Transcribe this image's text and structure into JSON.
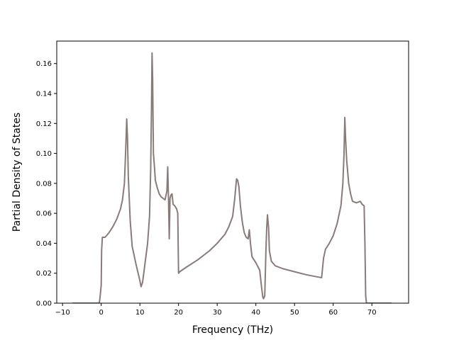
{
  "chart_data": {
    "type": "line",
    "xlabel": "Frequency (THz)",
    "ylabel": "Partial Density of States",
    "xlim": [
      -11.5,
      79.5
    ],
    "ylim": [
      0,
      0.175
    ],
    "x_ticks": [
      -10,
      0,
      10,
      20,
      30,
      40,
      50,
      60,
      70
    ],
    "y_ticks": [
      0.0,
      0.02,
      0.04,
      0.06,
      0.08,
      0.1,
      0.12,
      0.14,
      0.16
    ],
    "y_tick_labels": [
      "0.00",
      "0.02",
      "0.04",
      "0.06",
      "0.08",
      "0.10",
      "0.12",
      "0.14",
      "0.16"
    ],
    "grid": false,
    "series": [
      {
        "color": "#8a7b7b",
        "x": [
          -7.3,
          -0.5,
          -0.3,
          0,
          0.1,
          0.3,
          1,
          2,
          3,
          4,
          5,
          5.5,
          6,
          6.3,
          6.6,
          6.8,
          7,
          7.5,
          8,
          9,
          10,
          10.3,
          10.7,
          11,
          12,
          12.5,
          12.8,
          13,
          13.15,
          13.3,
          13.5,
          13.8,
          14,
          14.5,
          15,
          15.5,
          16,
          16.5,
          17,
          17.2,
          17.4,
          17.6,
          17.8,
          18,
          18.3,
          18.6,
          19,
          19.5,
          19.8,
          20,
          20.3,
          22,
          25,
          28,
          30,
          32,
          33,
          34,
          34.5,
          35,
          35.3,
          35.6,
          36,
          36.5,
          37,
          37.5,
          38,
          38.3,
          38.6,
          39,
          40,
          41,
          41.5,
          41.8,
          42,
          42.3,
          42.6,
          42.8,
          43,
          43.3,
          43.5,
          44,
          45,
          47,
          50,
          53,
          55,
          57,
          57.5,
          58,
          59,
          60,
          61,
          62,
          62.5,
          62.8,
          63,
          63.2,
          63.5,
          64,
          64.5,
          65,
          66,
          67,
          67.5,
          68,
          68.2,
          68.4,
          68.6,
          75
        ],
        "y": [
          0,
          0,
          0.004,
          0.012,
          0.035,
          0.044,
          0.044,
          0.047,
          0.051,
          0.056,
          0.063,
          0.069,
          0.08,
          0.1,
          0.123,
          0.11,
          0.085,
          0.055,
          0.038,
          0.026,
          0.015,
          0.011,
          0.014,
          0.02,
          0.04,
          0.058,
          0.09,
          0.13,
          0.167,
          0.15,
          0.1,
          0.09,
          0.082,
          0.077,
          0.073,
          0.071,
          0.07,
          0.069,
          0.075,
          0.091,
          0.07,
          0.043,
          0.07,
          0.072,
          0.073,
          0.066,
          0.065,
          0.063,
          0.06,
          0.02,
          0.021,
          0.024,
          0.029,
          0.035,
          0.04,
          0.046,
          0.051,
          0.058,
          0.069,
          0.083,
          0.082,
          0.078,
          0.065,
          0.054,
          0.047,
          0.044,
          0.043,
          0.049,
          0.04,
          0.031,
          0.027,
          0.022,
          0.01,
          0.004,
          0.003,
          0.005,
          0.035,
          0.05,
          0.059,
          0.05,
          0.035,
          0.028,
          0.025,
          0.023,
          0.021,
          0.019,
          0.018,
          0.017,
          0.03,
          0.036,
          0.04,
          0.045,
          0.053,
          0.065,
          0.08,
          0.1,
          0.124,
          0.11,
          0.095,
          0.08,
          0.073,
          0.068,
          0.067,
          0.068,
          0.066,
          0.065,
          0.04,
          0.005,
          0,
          0
        ]
      }
    ]
  }
}
